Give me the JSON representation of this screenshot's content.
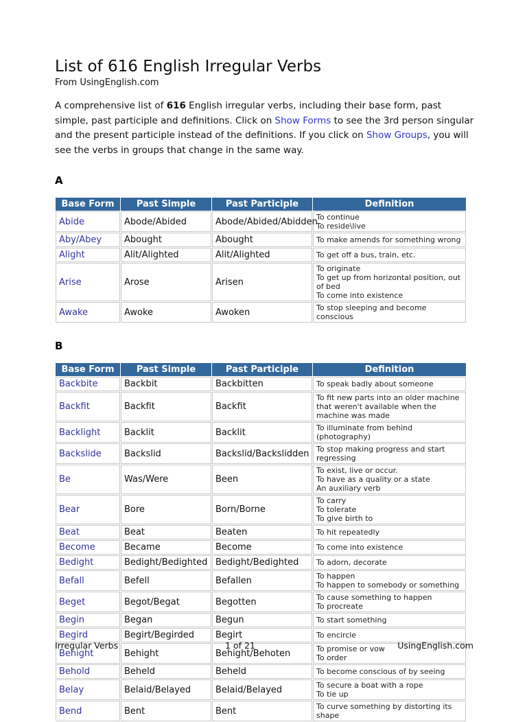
{
  "page": {
    "title": "List of 616 English Irregular Verbs",
    "subtitle": "From UsingEnglish.com"
  },
  "intro": {
    "part1": "A comprehensive list of ",
    "bold_text": "616",
    "part2": " English irregular verbs, including their base form, past simple, past participle and definitions. Click on ",
    "link1": "Show Forms",
    "part3": " to see the 3rd person singular and the present participle instead of the definitions. If you click on ",
    "link2": "Show Groups",
    "part4": ", you will see the verbs in groups that change in the same way."
  },
  "table_headers": [
    "Base Form",
    "Past Simple",
    "Past Participle",
    "Definition"
  ],
  "sections": [
    {
      "letter": "A",
      "rows": [
        {
          "base": "Abide",
          "past_simple": "Abode/Abided",
          "past_participle": "Abode/Abided/Abidden",
          "definition": [
            "To continue",
            "To reside\\live"
          ]
        },
        {
          "base": "Aby/Abey",
          "past_simple": "Abought",
          "past_participle": "Abought",
          "definition": [
            "To make amends for something wrong"
          ]
        },
        {
          "base": "Alight",
          "past_simple": "Alit/Alighted",
          "past_participle": "Alit/Alighted",
          "definition": [
            "To get off a bus, train, etc."
          ]
        },
        {
          "base": "Arise",
          "past_simple": "Arose",
          "past_participle": "Arisen",
          "definition": [
            "To originate",
            "To get up from horizontal position, out of bed",
            "To come into existence"
          ]
        },
        {
          "base": "Awake",
          "past_simple": "Awoke",
          "past_participle": "Awoken",
          "definition": [
            "To stop sleeping and become conscious"
          ]
        }
      ]
    },
    {
      "letter": "B",
      "rows": [
        {
          "base": "Backbite",
          "past_simple": "Backbit",
          "past_participle": "Backbitten",
          "definition": [
            "To speak badly about someone"
          ]
        },
        {
          "base": "Backfit",
          "past_simple": "Backfit",
          "past_participle": "Backfit",
          "definition": [
            "To fit new parts into an older machine that weren't available when the machine was made"
          ]
        },
        {
          "base": "Backlight",
          "past_simple": "Backlit",
          "past_participle": "Backlit",
          "definition": [
            "To illuminate from behind (photography)"
          ]
        },
        {
          "base": "Backslide",
          "past_simple": "Backslid",
          "past_participle": "Backslid/Backslidden",
          "definition": [
            "To stop making progress and start regressing"
          ]
        },
        {
          "base": "Be",
          "past_simple": "Was/Were",
          "past_participle": "Been",
          "definition": [
            "To exist, live or occur.",
            "To have as a quality or a state",
            "An auxiliary verb"
          ]
        },
        {
          "base": "Bear",
          "past_simple": "Bore",
          "past_participle": "Born/Borne",
          "definition": [
            "To carry",
            "To tolerate",
            "To give birth to"
          ]
        },
        {
          "base": "Beat",
          "past_simple": "Beat",
          "past_participle": "Beaten",
          "definition": [
            "To hit repeatedly"
          ]
        },
        {
          "base": "Become",
          "past_simple": "Became",
          "past_participle": "Become",
          "definition": [
            "To come into existence"
          ]
        },
        {
          "base": "Bedight",
          "past_simple": "Bedight/Bedighted",
          "past_participle": "Bedight/Bedighted",
          "definition": [
            "To adorn, decorate"
          ]
        },
        {
          "base": "Befall",
          "past_simple": "Befell",
          "past_participle": "Befallen",
          "definition": [
            "To happen",
            "To happen to somebody or something"
          ]
        },
        {
          "base": "Beget",
          "past_simple": "Begot/Begat",
          "past_participle": "Begotten",
          "definition": [
            "To cause something to happen",
            "To procreate"
          ]
        },
        {
          "base": "Begin",
          "past_simple": "Began",
          "past_participle": "Begun",
          "definition": [
            "To start something"
          ]
        },
        {
          "base": "Begird",
          "past_simple": "Begirt/Begirded",
          "past_participle": "Begirt",
          "definition": [
            "To encircle"
          ]
        },
        {
          "base": "Behight",
          "past_simple": "Behight",
          "past_participle": "Behight/Behoten",
          "definition": [
            "To promise or vow",
            "To order"
          ]
        },
        {
          "base": "Behold",
          "past_simple": "Beheld",
          "past_participle": "Beheld",
          "definition": [
            "To become conscious of by seeing"
          ]
        },
        {
          "base": "Belay",
          "past_simple": "Belaid/Belayed",
          "past_participle": "Belaid/Belayed",
          "definition": [
            "To secure a boat with a rope",
            "To tie up"
          ]
        },
        {
          "base": "Bend",
          "past_simple": "Bent",
          "past_participle": "Bent",
          "definition": [
            "To curve something by distorting its shape"
          ]
        }
      ]
    }
  ],
  "footer": {
    "left": "Irregular Verbs",
    "center": "1 of 21",
    "right": "UsingEnglish.com"
  },
  "colors": {
    "table_header_bg": "#33689c",
    "table_header_text": "#ffffff",
    "verb_link": "#333399",
    "intro_link": "#3333cc",
    "cell_border": "#c9c9c9"
  }
}
